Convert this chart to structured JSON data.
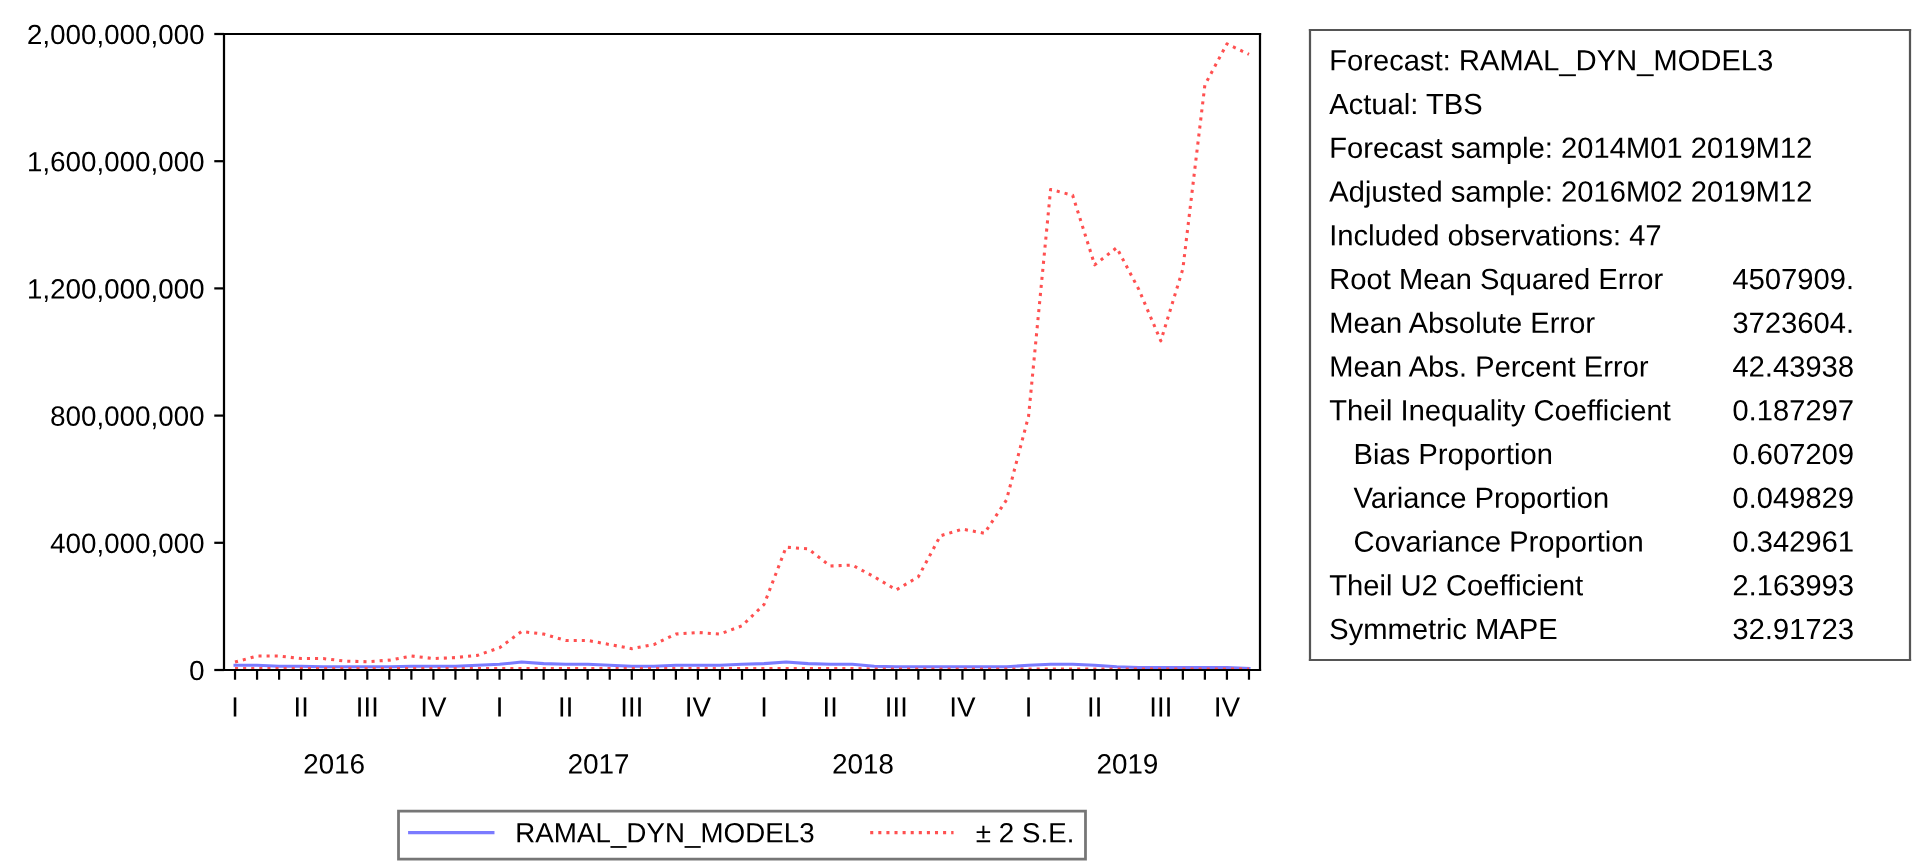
{
  "chart_data": [
    {
      "type": "line",
      "categories": [
        "I",
        null,
        null,
        "II",
        null,
        null,
        "III",
        null,
        null,
        "IV",
        null,
        null,
        "I",
        null,
        null,
        "II",
        null,
        null,
        "III",
        null,
        null,
        "IV",
        null,
        null,
        "I",
        null,
        null,
        "II",
        null,
        null,
        "III",
        null,
        null,
        "IV",
        null,
        null,
        "I",
        null,
        null,
        "II",
        null,
        null,
        "III",
        null,
        null,
        "IV",
        null
      ],
      "series": [
        {
          "name": "RAMAL_DYN_MODEL3",
          "color": "#7b7bff",
          "line_style": "solid",
          "values": [
            15000000,
            15000000,
            12000000,
            12000000,
            10000000,
            10000000,
            10000000,
            10000000,
            12000000,
            12000000,
            12000000,
            15000000,
            18000000,
            25000000,
            20000000,
            18000000,
            18000000,
            15000000,
            12000000,
            12000000,
            15000000,
            15000000,
            15000000,
            18000000,
            20000000,
            25000000,
            20000000,
            18000000,
            18000000,
            12000000,
            10000000,
            10000000,
            10000000,
            10000000,
            10000000,
            10000000,
            15000000,
            18000000,
            18000000,
            15000000,
            10000000,
            8000000,
            8000000,
            8000000,
            8000000,
            8000000,
            5000000
          ]
        },
        {
          "name": "± 2 S.E.",
          "color": "#ff5050",
          "line_style": "dotted",
          "values": [
            25000000,
            44000000,
            44000000,
            36000000,
            36000000,
            28000000,
            26000000,
            31000000,
            44000000,
            36000000,
            39000000,
            46000000,
            70000000,
            121000000,
            113000000,
            93000000,
            93000000,
            80000000,
            67000000,
            80000000,
            113000000,
            118000000,
            113000000,
            139000000,
            206000000,
            386000000,
            381000000,
            327000000,
            330000000,
            293000000,
            252000000,
            293000000,
            422000000,
            443000000,
            430000000,
            535000000,
            798000000,
            1511000000,
            1493000000,
            1274000000,
            1328000000,
            1197000000,
            1035000000,
            1261000000,
            1840000000,
            1969000000,
            1936000000
          ]
        },
        {
          "color": "#ff5050",
          "line_style": "dotted",
          "values": [
            5000000,
            5000000,
            5000000,
            5000000,
            5000000,
            5000000,
            5000000,
            5000000,
            5000000,
            5000000,
            5000000,
            5000000,
            5000000,
            5000000,
            5000000,
            5000000,
            5000000,
            5000000,
            5000000,
            5000000,
            5000000,
            5000000,
            5000000,
            5000000,
            5000000,
            5000000,
            5000000,
            5000000,
            5000000,
            3000000,
            3000000,
            3000000,
            3000000,
            3000000,
            3000000,
            3000000,
            3000000,
            3000000,
            3000000,
            3000000,
            3000000,
            3000000,
            3000000,
            3000000,
            3000000,
            3000000,
            3000000
          ]
        }
      ],
      "ylim": [
        0,
        2000000000
      ],
      "yticks": [
        0,
        {
          "value": 400000000,
          "label": "400,000,000"
        },
        {
          "value": 800000000,
          "label": "800,000,000"
        },
        {
          "value": 1200000000,
          "label": "1,200,000,000"
        },
        {
          "value": 1600000000,
          "label": "1,600,000,000"
        },
        {
          "value": 2000000000,
          "label": "2,000,000,000"
        }
      ],
      "x2lim": [
        "2016-01-16",
        "2019-12-16"
      ],
      "x2ticks": [
        {
          "value": "2016-06-16",
          "label": "2016"
        },
        {
          "value": "2017-06-16",
          "label": "2017"
        },
        {
          "value": "2018-06-16",
          "label": "2018"
        },
        {
          "value": "2019-06-16",
          "label": "2019"
        }
      ],
      "grid": false,
      "legend": "bottom"
    },
    {
      "type": "other",
      "annotations": [
        "Forecast: RAMAL_DYN_MODEL3",
        "Actual: TBS",
        "Forecast sample: 2014M01 2019M12",
        "Adjusted sample: 2016M02 2019M12",
        "Included observations: 47",
        "Root Mean Squared Error\t4507909.",
        "Mean Absolute Error\t3723604.",
        "Mean Abs. Percent Error\t42.43938",
        "Theil Inequality Coefficient\t0.187297",
        "   Bias Proportion\t0.607209",
        "   Variance Proportion\t0.049829",
        "   Covariance Proportion\t0.342961",
        "Theil U2 Coefficient\t2.163993",
        "Symmetric MAPE\t32.91723"
      ]
    }
  ]
}
